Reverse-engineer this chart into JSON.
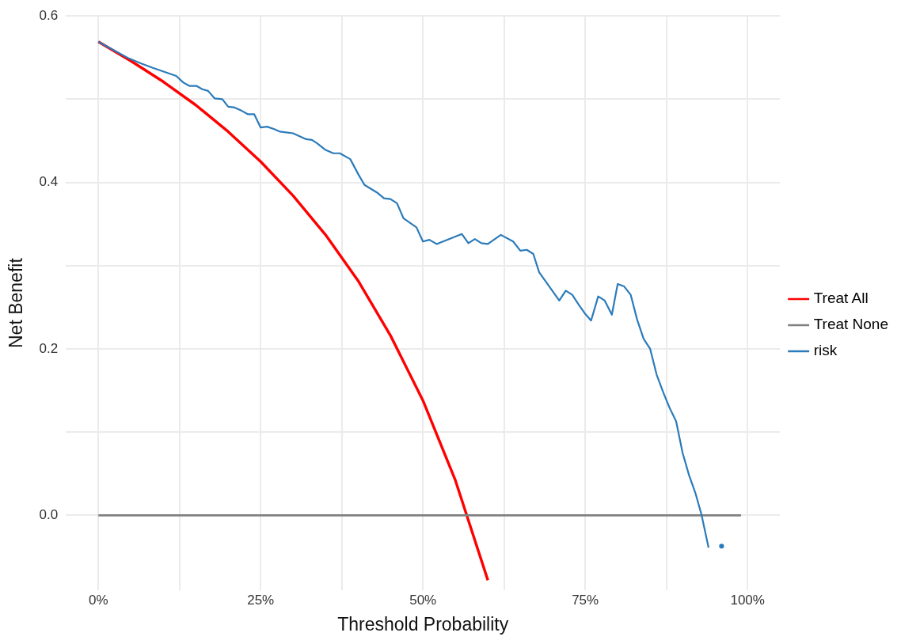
{
  "chart_data": {
    "type": "line",
    "xlabel": "Threshold Probability",
    "ylabel": "Net Benefit",
    "xlim": [
      -5,
      105
    ],
    "ylim": [
      -0.09,
      0.6
    ],
    "xticks": [
      {
        "value": 0,
        "label": "0%"
      },
      {
        "value": 12.5,
        "label": null
      },
      {
        "value": 25,
        "label": "25%"
      },
      {
        "value": 37.5,
        "label": null
      },
      {
        "value": 50,
        "label": "50%"
      },
      {
        "value": 62.5,
        "label": null
      },
      {
        "value": 75,
        "label": "75%"
      },
      {
        "value": 87.5,
        "label": null
      },
      {
        "value": 100,
        "label": "100%"
      }
    ],
    "yticks": [
      {
        "value": 0,
        "label": "0.0"
      },
      {
        "value": 0.1,
        "label": null
      },
      0.2,
      {
        "value": 0.3,
        "label": null
      },
      0.4,
      {
        "value": 0.5,
        "label": null
      },
      0.6
    ],
    "grid": true,
    "legend": "right",
    "marker": "none",
    "line_style": "solid",
    "series": [
      {
        "name": "Treat All",
        "color": "#ff0000",
        "x": [
          0,
          5,
          10,
          15,
          20,
          25,
          30,
          35,
          40,
          45,
          50,
          55,
          60
        ],
        "values": [
          0.569,
          0.546,
          0.521,
          0.493,
          0.461,
          0.425,
          0.384,
          0.337,
          0.282,
          0.216,
          0.138,
          0.042,
          -0.078
        ]
      },
      {
        "name": "Treat None",
        "color": "#808080",
        "x": [
          0,
          99
        ],
        "values": [
          0,
          0
        ]
      },
      {
        "name": "risk",
        "color": "#2b7bba",
        "x": [
          0,
          2.1,
          4.7,
          6.6,
          8.3,
          10.5,
          12,
          13.1,
          14,
          15.1,
          16,
          16.9,
          17.9,
          19.1,
          20,
          21,
          22.1,
          23,
          24,
          25,
          26,
          27.1,
          28,
          30,
          32,
          32.9,
          33.7,
          35,
          36.2,
          37.2,
          38.8,
          40.1,
          41,
          42.9,
          44,
          45,
          46,
          47,
          49,
          50,
          51,
          52.1,
          53.4,
          55,
          56,
          57,
          58,
          59,
          60,
          62,
          63.9,
          65,
          66,
          67,
          67.9,
          71,
          72,
          73,
          74,
          75,
          75.9,
          77,
          78,
          79.1,
          80,
          81,
          82,
          83,
          84,
          85,
          86,
          87,
          88,
          89,
          90,
          91,
          92,
          92.9,
          94,
          94.6,
          95.1,
          96
        ],
        "values": [
          0.569,
          0.56,
          0.549,
          0.543,
          0.538,
          0.532,
          0.528,
          0.52,
          0.516,
          0.516,
          0.512,
          0.51,
          0.501,
          0.5,
          0.491,
          0.49,
          0.486,
          0.482,
          0.482,
          0.466,
          0.467,
          0.464,
          0.461,
          0.459,
          0.452,
          0.451,
          0.447,
          0.439,
          0.435,
          0.435,
          0.428,
          0.409,
          0.397,
          0.388,
          0.381,
          0.38,
          0.375,
          0.357,
          0.346,
          0.329,
          0.331,
          0.326,
          0.33,
          0.335,
          0.338,
          0.327,
          0.332,
          0.327,
          0.326,
          0.337,
          0.329,
          0.318,
          0.319,
          0.314,
          0.292,
          0.258,
          0.27,
          0.265,
          0.253,
          0.242,
          0.234,
          0.263,
          0.258,
          0.241,
          0.278,
          0.275,
          0.265,
          0.235,
          0.212,
          0.2,
          0.169,
          0.148,
          0.129,
          0.113,
          0.075,
          0.048,
          0.026,
          0.001,
          -0.039,
          null,
          null,
          -0.037
        ]
      }
    ]
  }
}
